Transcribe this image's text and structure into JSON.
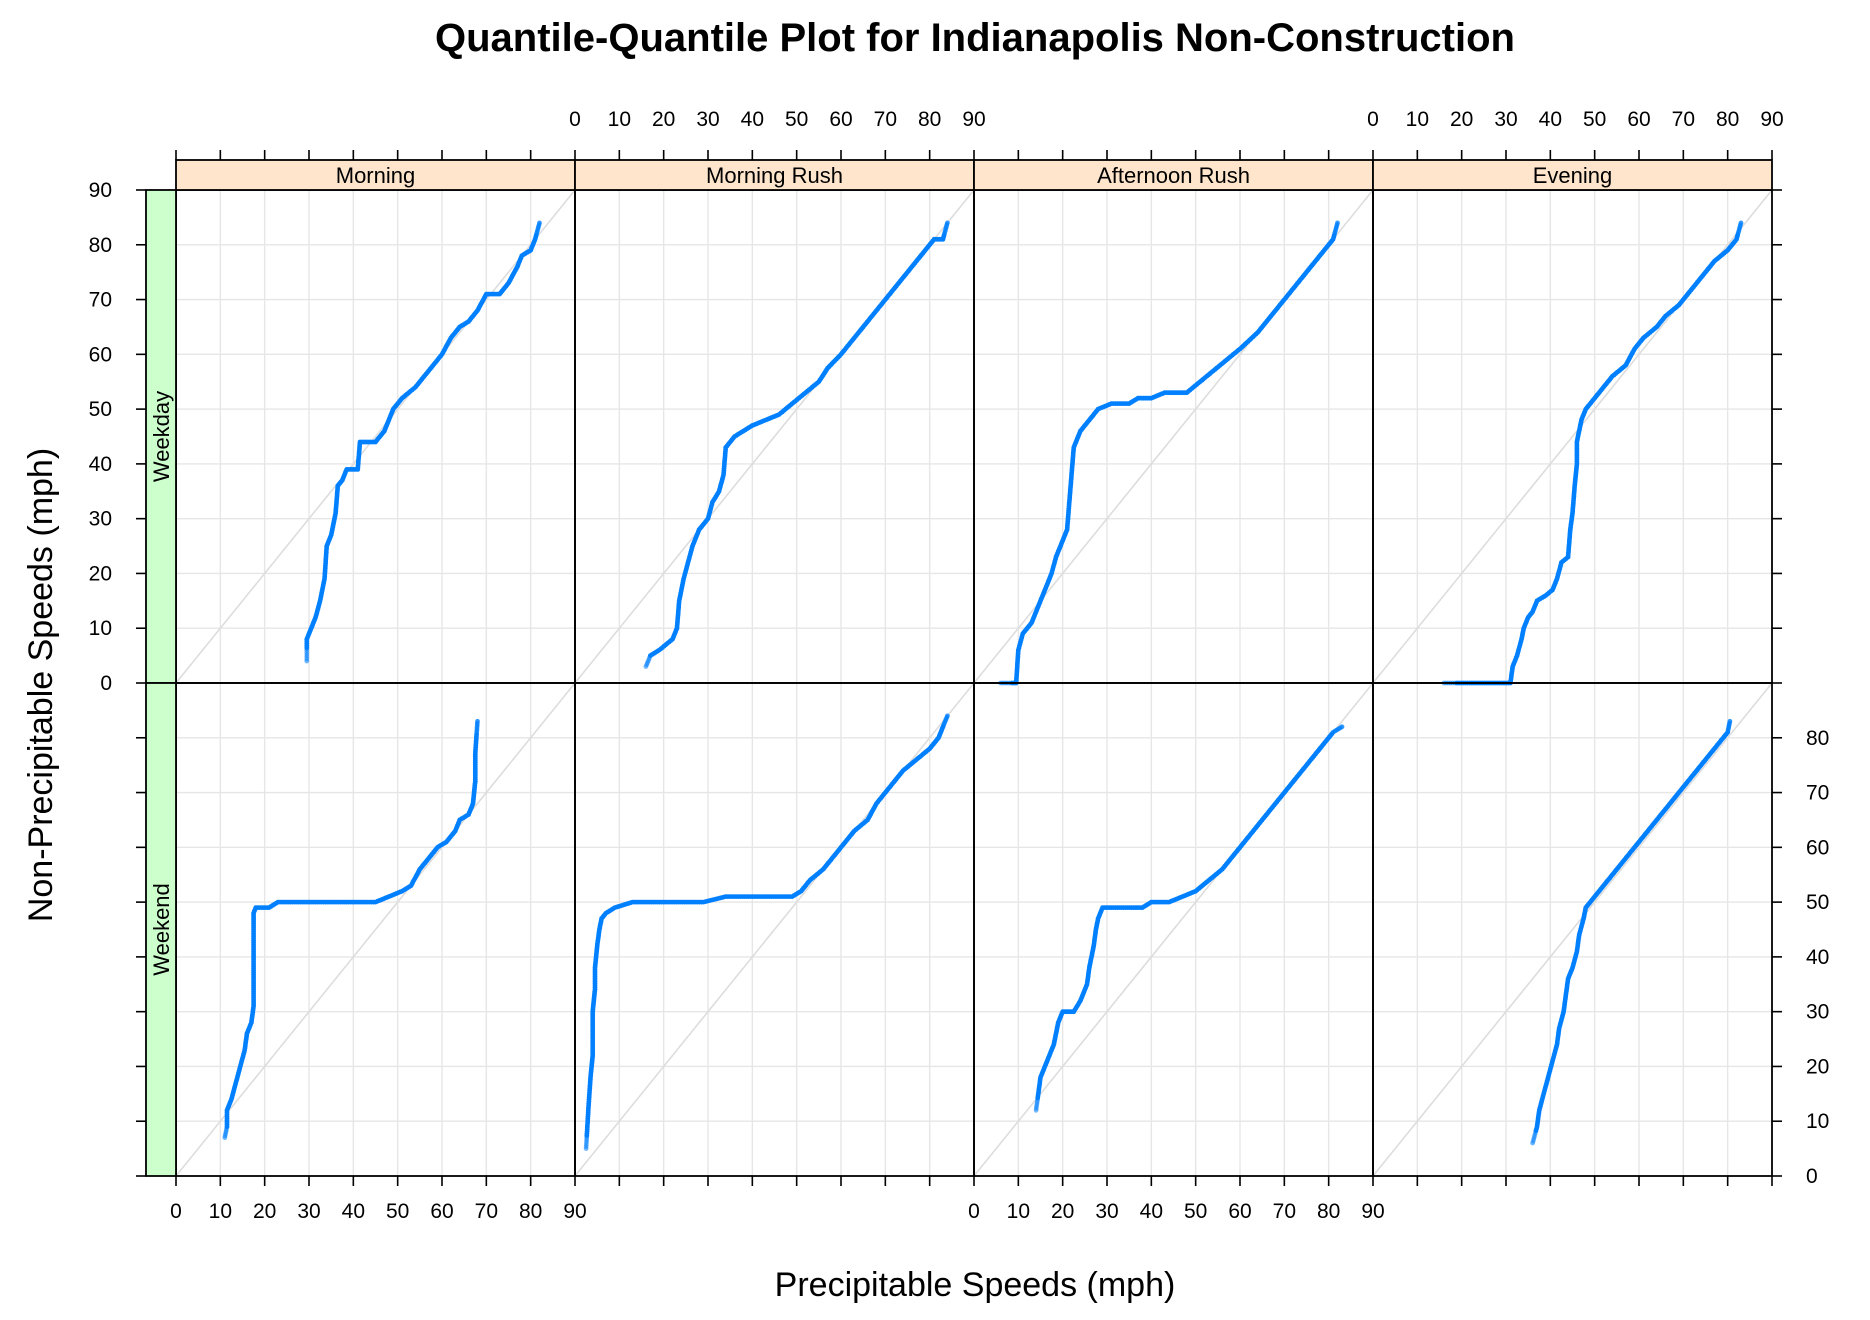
{
  "chart_data": {
    "type": "scatter",
    "title": "Quantile-Quantile Plot for Indianapolis Non-Construction",
    "xlabel": "Precipitable Speeds (mph)",
    "ylabel": "Non-Precipitable Speeds (mph)",
    "xlim": [
      0,
      90
    ],
    "ylim": [
      0,
      90
    ],
    "ticks": [
      0,
      10,
      20,
      30,
      40,
      50,
      60,
      70,
      80,
      90
    ],
    "grid": true,
    "reference_line": "y = x",
    "columns": [
      "Morning",
      "Morning Rush",
      "Afternoon Rush",
      "Evening"
    ],
    "rows": [
      "Weekday",
      "Weekend"
    ],
    "colors": {
      "points": "#0080ff",
      "column_strip": "#ffe5cc",
      "row_strip": "#ccffcc",
      "grid": "#e6e6e6",
      "reference": "#dddddd"
    },
    "panels": [
      {
        "row": "Weekday",
        "column": "Morning",
        "points": [
          [
            29.5,
            4
          ],
          [
            29.5,
            8
          ],
          [
            30.5,
            10
          ],
          [
            31.5,
            12
          ],
          [
            32.5,
            15
          ],
          [
            33.5,
            19
          ],
          [
            34,
            25
          ],
          [
            35,
            27
          ],
          [
            36,
            31
          ],
          [
            36.5,
            36
          ],
          [
            37.5,
            37
          ],
          [
            38.5,
            39
          ],
          [
            41,
            39
          ],
          [
            41.5,
            44
          ],
          [
            45,
            44
          ],
          [
            47,
            46
          ],
          [
            48,
            48
          ],
          [
            49,
            50
          ],
          [
            51,
            52
          ],
          [
            54,
            54
          ],
          [
            57,
            57
          ],
          [
            60,
            60
          ],
          [
            62,
            63
          ],
          [
            64,
            65
          ],
          [
            66,
            66
          ],
          [
            68,
            68
          ],
          [
            70,
            71
          ],
          [
            73,
            71
          ],
          [
            75,
            73
          ],
          [
            77,
            76
          ],
          [
            78,
            78
          ],
          [
            80,
            79
          ],
          [
            81,
            81
          ],
          [
            82,
            84
          ]
        ]
      },
      {
        "row": "Weekday",
        "column": "Morning Rush",
        "points": [
          [
            16,
            3
          ],
          [
            17,
            5
          ],
          [
            19,
            6
          ],
          [
            20.5,
            7
          ],
          [
            22,
            8
          ],
          [
            23,
            10
          ],
          [
            23.5,
            15
          ],
          [
            24.5,
            19
          ],
          [
            25.5,
            22
          ],
          [
            26.5,
            25
          ],
          [
            28,
            28
          ],
          [
            30,
            30
          ],
          [
            31,
            33
          ],
          [
            32.5,
            35
          ],
          [
            33.5,
            38
          ],
          [
            34,
            43
          ],
          [
            36,
            45
          ],
          [
            38,
            46
          ],
          [
            40,
            47
          ],
          [
            43,
            48
          ],
          [
            46,
            49
          ],
          [
            49,
            51
          ],
          [
            52,
            53
          ],
          [
            55,
            55
          ],
          [
            57,
            57.5
          ],
          [
            60,
            60
          ],
          [
            63,
            63
          ],
          [
            65,
            65
          ],
          [
            68,
            68
          ],
          [
            71,
            71
          ],
          [
            74,
            74
          ],
          [
            77,
            77
          ],
          [
            79,
            79
          ],
          [
            81,
            81
          ],
          [
            83,
            81
          ],
          [
            84,
            84
          ]
        ]
      },
      {
        "row": "Weekday",
        "column": "Afternoon Rush",
        "points": [
          [
            6,
            0
          ],
          [
            9.5,
            0
          ],
          [
            10,
            6
          ],
          [
            11,
            9
          ],
          [
            13,
            11
          ],
          [
            14.5,
            14
          ],
          [
            16,
            17
          ],
          [
            17.5,
            20
          ],
          [
            18.5,
            23
          ],
          [
            20,
            26
          ],
          [
            21,
            28
          ],
          [
            21.5,
            33
          ],
          [
            22,
            38
          ],
          [
            22.5,
            43
          ],
          [
            24,
            46
          ],
          [
            26,
            48
          ],
          [
            28,
            50
          ],
          [
            31,
            51
          ],
          [
            35,
            51
          ],
          [
            37,
            52
          ],
          [
            40,
            52
          ],
          [
            43,
            53
          ],
          [
            48,
            53
          ],
          [
            51,
            55
          ],
          [
            54,
            57
          ],
          [
            57,
            59
          ],
          [
            60,
            61
          ],
          [
            64,
            64
          ],
          [
            67,
            67
          ],
          [
            70,
            70
          ],
          [
            73,
            73
          ],
          [
            76,
            76
          ],
          [
            79,
            79
          ],
          [
            81,
            81
          ],
          [
            82,
            84
          ]
        ]
      },
      {
        "row": "Weekday",
        "column": "Evening",
        "points": [
          [
            16,
            0
          ],
          [
            31,
            0
          ],
          [
            31.5,
            3
          ],
          [
            32.5,
            5
          ],
          [
            33.5,
            8
          ],
          [
            34,
            10
          ],
          [
            35,
            12
          ],
          [
            36,
            13
          ],
          [
            37,
            15
          ],
          [
            39,
            16
          ],
          [
            40.5,
            17
          ],
          [
            41.5,
            19
          ],
          [
            42.5,
            22
          ],
          [
            44,
            23
          ],
          [
            44.5,
            28
          ],
          [
            45,
            31
          ],
          [
            45.5,
            36
          ],
          [
            46,
            40
          ],
          [
            46,
            44
          ],
          [
            47,
            48
          ],
          [
            48,
            50
          ],
          [
            50,
            52
          ],
          [
            52,
            54
          ],
          [
            54,
            56
          ],
          [
            57,
            58
          ],
          [
            59,
            61
          ],
          [
            61,
            63
          ],
          [
            64,
            65
          ],
          [
            66,
            67
          ],
          [
            69,
            69
          ],
          [
            72,
            72
          ],
          [
            75,
            75
          ],
          [
            77,
            77
          ],
          [
            80,
            79
          ],
          [
            82,
            81
          ],
          [
            83,
            84
          ]
        ]
      },
      {
        "row": "Weekend",
        "column": "Morning",
        "points": [
          [
            11,
            7
          ],
          [
            11.5,
            9
          ],
          [
            11.5,
            12
          ],
          [
            12.5,
            14
          ],
          [
            13.5,
            17
          ],
          [
            14.5,
            20
          ],
          [
            15.5,
            23
          ],
          [
            16,
            26
          ],
          [
            17,
            28
          ],
          [
            17.5,
            31
          ],
          [
            17.5,
            36
          ],
          [
            17.5,
            41
          ],
          [
            17.5,
            45
          ],
          [
            17.5,
            48
          ],
          [
            18,
            49
          ],
          [
            21,
            49
          ],
          [
            23,
            50
          ],
          [
            30,
            50
          ],
          [
            38,
            50
          ],
          [
            45,
            50
          ],
          [
            48,
            51
          ],
          [
            51,
            52
          ],
          [
            53,
            53
          ],
          [
            55,
            56
          ],
          [
            57,
            58
          ],
          [
            59,
            60
          ],
          [
            61,
            61
          ],
          [
            63,
            63
          ],
          [
            64,
            65
          ],
          [
            66,
            66
          ],
          [
            67,
            68
          ],
          [
            67.5,
            72
          ],
          [
            67.5,
            77
          ],
          [
            68,
            83
          ]
        ]
      },
      {
        "row": "Weekend",
        "column": "Morning Rush",
        "points": [
          [
            2.5,
            5
          ],
          [
            3,
            12
          ],
          [
            3.5,
            18
          ],
          [
            4,
            22
          ],
          [
            4,
            26
          ],
          [
            4,
            30
          ],
          [
            4.5,
            34
          ],
          [
            4.5,
            38
          ],
          [
            5,
            42
          ],
          [
            5.5,
            45
          ],
          [
            6,
            47
          ],
          [
            7,
            48
          ],
          [
            9,
            49
          ],
          [
            13,
            50
          ],
          [
            20,
            50
          ],
          [
            29,
            50
          ],
          [
            34,
            51
          ],
          [
            42,
            51
          ],
          [
            49,
            51
          ],
          [
            51,
            52
          ],
          [
            53,
            54
          ],
          [
            56,
            56
          ],
          [
            58,
            58
          ],
          [
            61,
            61
          ],
          [
            63,
            63
          ],
          [
            66,
            65
          ],
          [
            68,
            68
          ],
          [
            71,
            71
          ],
          [
            74,
            74
          ],
          [
            77,
            76
          ],
          [
            80,
            78
          ],
          [
            82,
            80
          ],
          [
            83,
            82
          ],
          [
            84,
            84
          ]
        ]
      },
      {
        "row": "Weekend",
        "column": "Afternoon Rush",
        "points": [
          [
            14,
            12
          ],
          [
            14.5,
            15
          ],
          [
            15,
            18
          ],
          [
            16,
            20
          ],
          [
            17,
            22
          ],
          [
            18,
            24
          ],
          [
            18.5,
            26
          ],
          [
            19,
            28
          ],
          [
            20,
            30
          ],
          [
            22.5,
            30
          ],
          [
            24,
            32
          ],
          [
            25.5,
            35
          ],
          [
            26,
            38
          ],
          [
            26.5,
            40
          ],
          [
            27,
            42
          ],
          [
            27.5,
            45
          ],
          [
            28,
            47
          ],
          [
            29,
            49
          ],
          [
            31,
            49
          ],
          [
            36,
            49
          ],
          [
            38,
            49
          ],
          [
            40,
            50
          ],
          [
            44,
            50
          ],
          [
            47,
            51
          ],
          [
            50,
            52
          ],
          [
            53,
            54
          ],
          [
            56,
            56
          ],
          [
            59,
            59
          ],
          [
            62,
            62
          ],
          [
            65,
            65
          ],
          [
            68,
            68
          ],
          [
            71,
            71
          ],
          [
            74,
            74
          ],
          [
            77,
            77
          ],
          [
            79,
            79
          ],
          [
            81,
            81
          ],
          [
            83,
            82
          ]
        ]
      },
      {
        "row": "Weekend",
        "column": "Evening",
        "points": [
          [
            36,
            6
          ],
          [
            37,
            9
          ],
          [
            37.5,
            12
          ],
          [
            38.5,
            15
          ],
          [
            39.5,
            18
          ],
          [
            40.5,
            21
          ],
          [
            41.5,
            24
          ],
          [
            42,
            27
          ],
          [
            43,
            30
          ],
          [
            43.5,
            33
          ],
          [
            44,
            36
          ],
          [
            45,
            38
          ],
          [
            46,
            41
          ],
          [
            46.5,
            44
          ],
          [
            47.5,
            47
          ],
          [
            48,
            49
          ],
          [
            50,
            51
          ],
          [
            52,
            53
          ],
          [
            54,
            55
          ],
          [
            56,
            57
          ],
          [
            58,
            59
          ],
          [
            60,
            61
          ],
          [
            62,
            63
          ],
          [
            64,
            65
          ],
          [
            66,
            67
          ],
          [
            68,
            69
          ],
          [
            70,
            71
          ],
          [
            72,
            73
          ],
          [
            74,
            75
          ],
          [
            76,
            77
          ],
          [
            78,
            79
          ],
          [
            80,
            81
          ],
          [
            80.5,
            83
          ]
        ]
      }
    ]
  }
}
